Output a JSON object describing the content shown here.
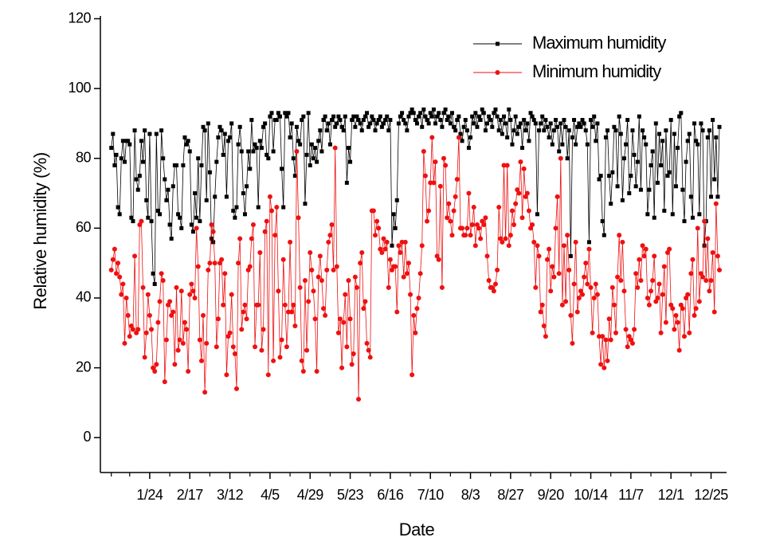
{
  "chart_data": {
    "type": "line",
    "x_label": "Date",
    "y_label": "Relative humidity (%)",
    "ylim": [
      -10,
      120
    ],
    "yticks": [
      0,
      20,
      40,
      60,
      80,
      100,
      120
    ],
    "legend": "upper right",
    "grid": false,
    "categories": [
      null,
      null,
      null,
      null,
      null,
      null,
      null,
      null,
      null,
      null,
      null,
      null,
      null,
      null,
      null,
      null,
      null,
      null,
      null,
      null,
      null,
      null,
      null,
      "1/24",
      null,
      null,
      null,
      null,
      null,
      null,
      null,
      null,
      null,
      null,
      null,
      null,
      null,
      null,
      null,
      null,
      null,
      null,
      null,
      null,
      null,
      null,
      null,
      "2/17",
      null,
      null,
      null,
      null,
      null,
      null,
      null,
      null,
      null,
      null,
      null,
      null,
      null,
      null,
      null,
      null,
      null,
      null,
      null,
      null,
      null,
      null,
      null,
      "3/12",
      null,
      null,
      null,
      null,
      null,
      null,
      null,
      null,
      null,
      null,
      null,
      null,
      null,
      null,
      null,
      null,
      null,
      null,
      null,
      null,
      null,
      null,
      null,
      "4/5",
      null,
      null,
      null,
      null,
      null,
      null,
      null,
      null,
      null,
      null,
      null,
      null,
      null,
      null,
      null,
      null,
      null,
      null,
      null,
      null,
      null,
      null,
      null,
      "4/29",
      null,
      null,
      null,
      null,
      null,
      null,
      null,
      null,
      null,
      null,
      null,
      null,
      null,
      null,
      null,
      null,
      null,
      null,
      null,
      null,
      null,
      null,
      null,
      "5/23",
      null,
      null,
      null,
      null,
      null,
      null,
      null,
      null,
      null,
      null,
      null,
      null,
      null,
      null,
      null,
      null,
      null,
      null,
      null,
      null,
      null,
      null,
      null,
      "6/16",
      null,
      null,
      null,
      null,
      null,
      null,
      null,
      null,
      null,
      null,
      null,
      null,
      null,
      null,
      null,
      null,
      null,
      null,
      null,
      null,
      null,
      null,
      null,
      "7/10",
      null,
      null,
      null,
      null,
      null,
      null,
      null,
      null,
      null,
      null,
      null,
      null,
      null,
      null,
      null,
      null,
      null,
      null,
      null,
      null,
      null,
      null,
      null,
      "8/3",
      null,
      null,
      null,
      null,
      null,
      null,
      null,
      null,
      null,
      null,
      null,
      null,
      null,
      null,
      null,
      null,
      null,
      null,
      null,
      null,
      null,
      null,
      null,
      "8/27",
      null,
      null,
      null,
      null,
      null,
      null,
      null,
      null,
      null,
      null,
      null,
      null,
      null,
      null,
      null,
      null,
      null,
      null,
      null,
      null,
      null,
      null,
      null,
      "9/20",
      null,
      null,
      null,
      null,
      null,
      null,
      null,
      null,
      null,
      null,
      null,
      null,
      null,
      null,
      null,
      null,
      null,
      null,
      null,
      null,
      null,
      null,
      null,
      "10/14",
      null,
      null,
      null,
      null,
      null,
      null,
      null,
      null,
      null,
      null,
      null,
      null,
      null,
      null,
      null,
      null,
      null,
      null,
      null,
      null,
      null,
      null,
      null,
      "11/7",
      null,
      null,
      null,
      null,
      null,
      null,
      null,
      null,
      null,
      null,
      null,
      null,
      null,
      null,
      null,
      null,
      null,
      null,
      null,
      null,
      null,
      null,
      null,
      "12/1",
      null,
      null,
      null,
      null,
      null,
      null,
      null,
      null,
      null,
      null,
      null,
      null,
      null,
      null,
      null,
      null,
      null,
      null,
      null,
      null,
      null,
      null,
      null,
      "12/25",
      null,
      null,
      null,
      null,
      null
    ],
    "series": [
      {
        "name": "Maximum humidity",
        "color": "#000000",
        "marker": "square",
        "values": [
          83,
          87,
          78,
          81,
          66,
          64,
          80,
          85,
          79,
          85,
          85,
          84,
          63,
          62,
          88,
          74,
          71,
          75,
          85,
          79,
          88,
          68,
          63,
          87,
          62,
          47,
          44,
          87,
          65,
          64,
          88,
          80,
          74,
          68,
          71,
          61,
          57,
          72,
          78,
          78,
          64,
          63,
          60,
          78,
          86,
          84,
          85,
          82,
          61,
          59,
          70,
          63,
          80,
          62,
          78,
          89,
          88,
          68,
          90,
          76,
          57,
          56,
          69,
          79,
          86,
          89,
          88,
          81,
          87,
          69,
          85,
          86,
          90,
          65,
          63,
          66,
          84,
          89,
          82,
          70,
          64,
          72,
          82,
          77,
          91,
          82,
          84,
          83,
          66,
          85,
          83,
          89,
          90,
          81,
          80,
          92,
          93,
          82,
          91,
          91,
          93,
          92,
          77,
          66,
          93,
          92,
          93,
          86,
          90,
          80,
          75,
          89,
          85,
          84,
          91,
          92,
          67,
          81,
          93,
          78,
          84,
          80,
          83,
          79,
          85,
          88,
          82,
          91,
          92,
          88,
          90,
          84,
          91,
          92,
          89,
          90,
          92,
          91,
          89,
          88,
          92,
          73,
          83,
          79,
          91,
          92,
          89,
          92,
          91,
          90,
          88,
          91,
          92,
          93,
          89,
          90,
          92,
          91,
          88,
          90,
          91,
          92,
          89,
          90,
          91,
          92,
          88,
          91,
          55,
          64,
          60,
          68,
          90,
          92,
          93,
          91,
          90,
          88,
          92,
          93,
          94,
          93,
          91,
          90,
          92,
          93,
          89,
          94,
          92,
          91,
          90,
          93,
          92,
          94,
          90,
          92,
          93,
          91,
          89,
          93,
          94,
          91,
          92,
          90,
          93,
          89,
          88,
          91,
          92,
          87,
          85,
          89,
          91,
          88,
          83,
          86,
          92,
          90,
          93,
          89,
          92,
          91,
          94,
          93,
          88,
          90,
          92,
          91,
          89,
          93,
          94,
          92,
          88,
          91,
          87,
          92,
          90,
          86,
          94,
          91,
          84,
          88,
          92,
          87,
          89,
          90,
          83,
          91,
          88,
          90,
          85,
          93,
          92,
          91,
          90,
          64,
          88,
          90,
          92,
          88,
          91,
          89,
          86,
          90,
          84,
          88,
          91,
          89,
          82,
          90,
          84,
          91,
          89,
          80,
          88,
          52,
          86,
          91,
          84,
          89,
          90,
          89,
          91,
          90,
          88,
          84,
          56,
          91,
          89,
          92,
          85,
          90,
          74,
          75,
          62,
          58,
          86,
          88,
          75,
          67,
          76,
          89,
          88,
          72,
          92,
          87,
          68,
          80,
          84,
          91,
          70,
          75,
          88,
          81,
          72,
          79,
          92,
          71,
          88,
          86,
          84,
          64,
          71,
          78,
          82,
          63,
          90,
          73,
          87,
          78,
          85,
          65,
          88,
          75,
          76,
          91,
          64,
          87,
          72,
          83,
          92,
          93,
          71,
          62,
          79,
          85,
          87,
          69,
          63,
          90,
          85,
          84,
          64,
          90,
          88,
          55,
          62,
          86,
          88,
          69,
          91,
          74,
          86,
          69,
          89
        ]
      },
      {
        "name": "Minimum humidity",
        "color": "#ee1111",
        "marker": "circle",
        "values": [
          48,
          51,
          54,
          47,
          50,
          46,
          41,
          44,
          27,
          40,
          35,
          29,
          32,
          31,
          52,
          30,
          31,
          61,
          62,
          43,
          23,
          30,
          41,
          35,
          31,
          20,
          19,
          21,
          33,
          39,
          47,
          45,
          16,
          28,
          38,
          39,
          35,
          36,
          21,
          43,
          25,
          28,
          42,
          27,
          33,
          31,
          19,
          41,
          44,
          42,
          40,
          60,
          49,
          28,
          22,
          35,
          13,
          27,
          48,
          50,
          61,
          59,
          50,
          26,
          34,
          50,
          51,
          38,
          47,
          18,
          29,
          30,
          41,
          26,
          24,
          14,
          50,
          57,
          31,
          36,
          38,
          34,
          48,
          49,
          57,
          61,
          26,
          38,
          38,
          53,
          25,
          31,
          59,
          62,
          18,
          69,
          65,
          22,
          58,
          66,
          42,
          23,
          28,
          51,
          38,
          26,
          36,
          56,
          36,
          38,
          32,
          82,
          63,
          43,
          22,
          19,
          45,
          25,
          39,
          53,
          48,
          42,
          34,
          19,
          46,
          52,
          45,
          37,
          35,
          48,
          56,
          58,
          61,
          48,
          83,
          49,
          30,
          34,
          20,
          33,
          41,
          26,
          45,
          34,
          21,
          24,
          46,
          43,
          11,
          50,
          53,
          37,
          39,
          27,
          25,
          23,
          65,
          65,
          58,
          62,
          60,
          54,
          53,
          57,
          54,
          56,
          43,
          51,
          48,
          49,
          49,
          36,
          55,
          53,
          56,
          46,
          56,
          47,
          50,
          41,
          18,
          35,
          30,
          37,
          40,
          47,
          55,
          82,
          75,
          62,
          65,
          73,
          86,
          73,
          79,
          52,
          51,
          72,
          43,
          80,
          78,
          63,
          67,
          62,
          58,
          65,
          69,
          74,
          86,
          60,
          60,
          58,
          58,
          60,
          70,
          58,
          61,
          66,
          55,
          61,
          60,
          57,
          62,
          61,
          63,
          52,
          45,
          43,
          43,
          42,
          44,
          48,
          66,
          57,
          56,
          78,
          57,
          78,
          55,
          58,
          65,
          61,
          67,
          71,
          70,
          79,
          63,
          77,
          69,
          70,
          65,
          60,
          61,
          56,
          43,
          55,
          52,
          36,
          38,
          32,
          29,
          51,
          54,
          42,
          49,
          46,
          60,
          69,
          47,
          80,
          38,
          55,
          39,
          58,
          48,
          35,
          27,
          44,
          56,
          36,
          40,
          42,
          41,
          46,
          50,
          44,
          54,
          43,
          30,
          40,
          44,
          41,
          29,
          21,
          29,
          20,
          28,
          22,
          34,
          28,
          43,
          38,
          30,
          46,
          58,
          45,
          56,
          42,
          31,
          26,
          29,
          28,
          27,
          31,
          47,
          43,
          51,
          45,
          55,
          52,
          54,
          40,
          38,
          42,
          45,
          52,
          39,
          40,
          44,
          30,
          41,
          49,
          33,
          53,
          54,
          38,
          37,
          31,
          35,
          33,
          25,
          38,
          37,
          29,
          40,
          41,
          30,
          47,
          51,
          35,
          37,
          60,
          39,
          47,
          46,
          62,
          45,
          57,
          42,
          45,
          53,
          36,
          67,
          52,
          48
        ]
      }
    ]
  }
}
